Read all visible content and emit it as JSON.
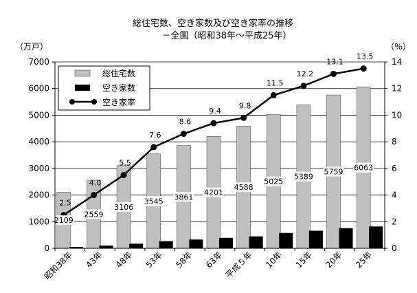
{
  "chart_data": {
    "type": "bar",
    "title": "総住宅数、空き家数及び空き家率の推移",
    "subtitle": "－全国（昭和38年～平成25年）",
    "ylabel_left": "（万戸）",
    "ylabel_right": "（％）",
    "categories": [
      "昭和38年",
      "43年",
      "48年",
      "53年",
      "58年",
      "63年",
      "平成５年",
      "10年",
      "15年",
      "20年",
      "25年"
    ],
    "ylim_left": [
      0,
      7000
    ],
    "ylim_right": [
      0,
      14
    ],
    "left_ticks": [
      "0",
      "1000",
      "2000",
      "3000",
      "4000",
      "5000",
      "6000",
      "7000"
    ],
    "right_ticks": [
      "0",
      "2",
      "4",
      "6",
      "8",
      "10",
      "12",
      "14"
    ],
    "series": [
      {
        "name": "総住宅数",
        "type": "bar",
        "axis": "left",
        "color": "#c0c0c0",
        "values": [
          2109,
          2559,
          3106,
          3545,
          3861,
          4201,
          4588,
          5025,
          5389,
          5759,
          6063
        ],
        "labels": [
          "2109",
          "2559",
          "3106",
          "3545",
          "3861",
          "4201",
          "4588",
          "5025",
          "5389",
          "5759",
          "6063"
        ]
      },
      {
        "name": "空き家数",
        "type": "bar",
        "axis": "left",
        "color": "#000000",
        "values": [
          52,
          103,
          172,
          268,
          330,
          394,
          448,
          576,
          659,
          757,
          820
        ]
      },
      {
        "name": "空き家率",
        "type": "line",
        "axis": "right",
        "color": "#000000",
        "values": [
          2.5,
          4.0,
          5.5,
          7.6,
          8.6,
          9.4,
          9.8,
          11.5,
          12.2,
          13.1,
          13.5
        ],
        "labels": [
          "2.5",
          "4.0",
          "5.5",
          "7.6",
          "8.6",
          "9.4",
          "9.8",
          "11.5",
          "12.2",
          "13.1",
          "13.5"
        ]
      }
    ],
    "legend": {
      "placement": "top-left",
      "items": [
        "総住宅数",
        "空き家数",
        "空き家率"
      ]
    },
    "grid": true
  }
}
